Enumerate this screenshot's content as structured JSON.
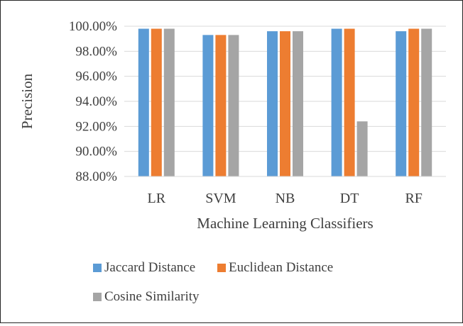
{
  "chart_data": {
    "type": "bar",
    "xlabel": "Machine Learning Classifiers",
    "ylabel": "Precision",
    "categories": [
      "LR",
      "SVM",
      "NB",
      "DT",
      "RF"
    ],
    "ylim": [
      88,
      100
    ],
    "yticks": [
      88,
      90,
      92,
      94,
      96,
      98,
      100
    ],
    "ytick_labels": [
      "88.00%",
      "90.00%",
      "92.00%",
      "94.00%",
      "96.00%",
      "98.00%",
      "100.00%"
    ],
    "grid": true,
    "legend_position": "bottom",
    "series": [
      {
        "name": "Jaccard Distance",
        "color": "#5b9bd5",
        "values": [
          99.8,
          99.3,
          99.6,
          99.8,
          99.6
        ]
      },
      {
        "name": "Euclidean Distance",
        "color": "#ed7d31",
        "values": [
          99.8,
          99.3,
          99.6,
          99.8,
          99.8
        ]
      },
      {
        "name": "Cosine Similarity",
        "color": "#a5a5a5",
        "values": [
          99.8,
          99.3,
          99.6,
          92.4,
          99.8
        ]
      }
    ]
  }
}
